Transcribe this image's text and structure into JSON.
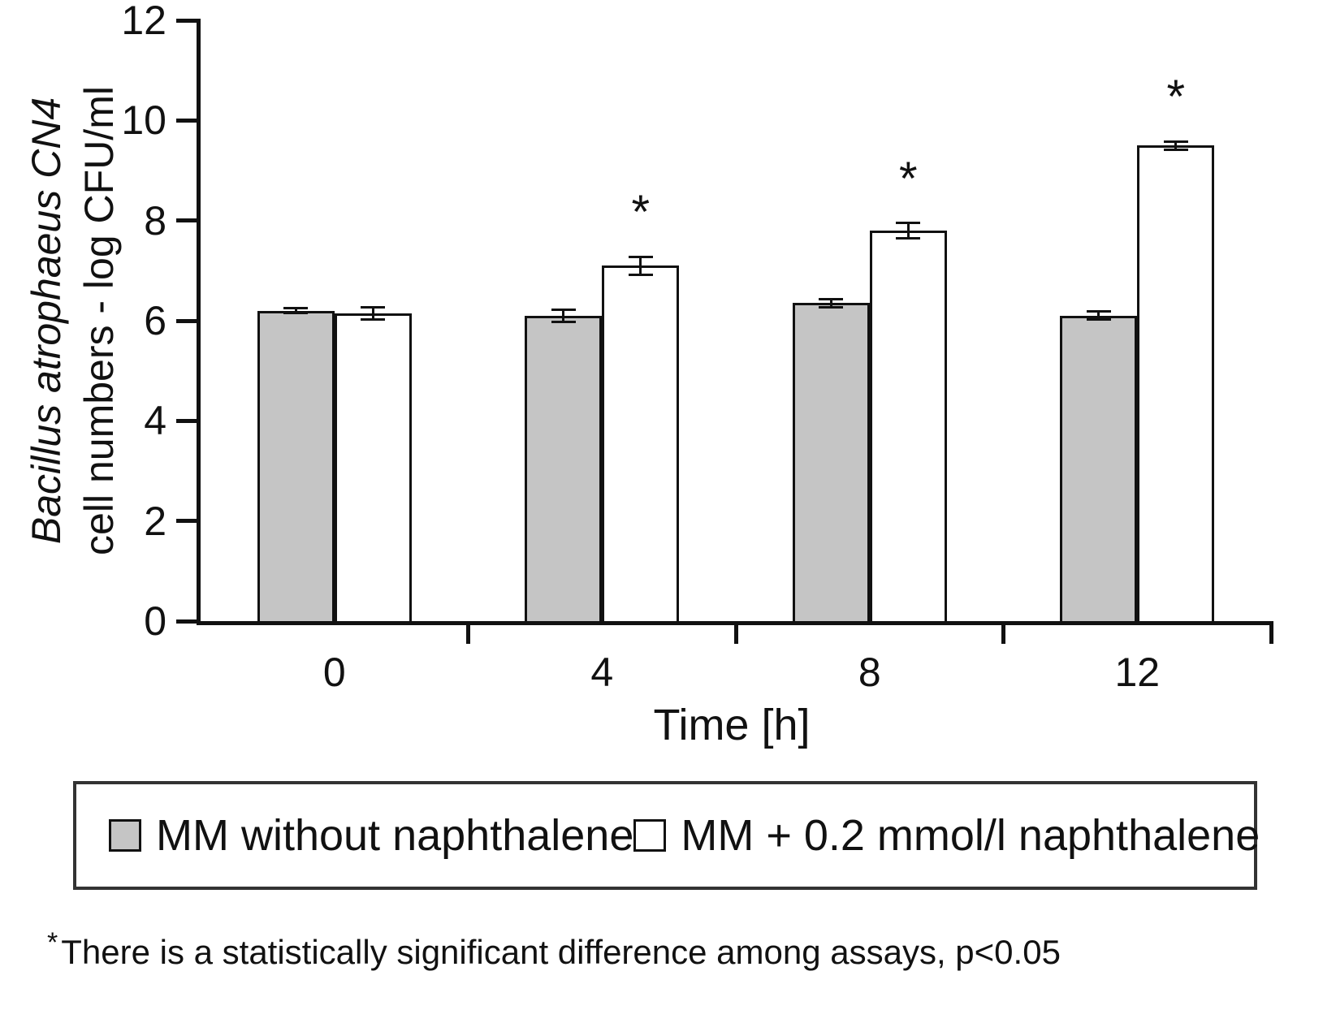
{
  "chart_data": {
    "type": "bar",
    "title": "",
    "categories": [
      "0",
      "4",
      "8",
      "12"
    ],
    "xlabel": "Time [h]",
    "ylabel_line1": "Bacillus atrophaeus CN4",
    "ylabel_line2": "cell numbers - log CFU/ml",
    "ylim": [
      0,
      12
    ],
    "yticks": [
      0,
      2,
      4,
      6,
      8,
      10,
      12
    ],
    "grid": false,
    "legend_position": "bottom",
    "significance_marker": "*",
    "series": [
      {
        "name": "MM without naphthalene",
        "color": "#c5c5c5",
        "values": [
          6.2,
          6.1,
          6.35,
          6.1
        ],
        "errors": [
          0.05,
          0.12,
          0.08,
          0.08
        ],
        "significant": [
          false,
          false,
          false,
          false
        ]
      },
      {
        "name": "MM + 0.2 mmol/l naphthalene",
        "color": "#ffffff",
        "values": [
          6.15,
          7.1,
          7.8,
          9.5
        ],
        "errors": [
          0.12,
          0.18,
          0.15,
          0.08
        ],
        "significant": [
          false,
          true,
          true,
          true
        ]
      }
    ]
  },
  "footnote": {
    "marker": "*",
    "text": "There is a statistically significant difference among assays, p<0.05"
  }
}
